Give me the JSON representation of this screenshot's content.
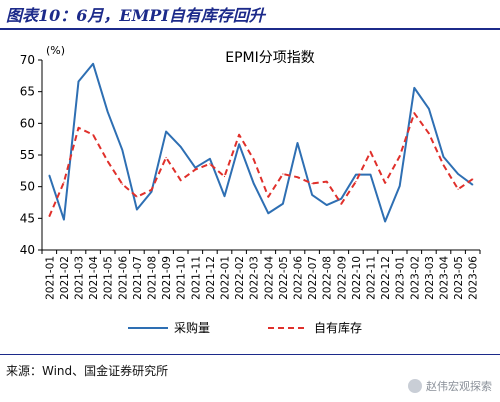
{
  "figure": {
    "title": "图表10：6月，EMPI自有库存回升",
    "source": "来源：Wind、国金证券研究所",
    "watermark": "赵伟宏观探索"
  },
  "chart_data": {
    "type": "line",
    "title": "EPMI分项指数",
    "unit_label": "(%)",
    "ylim": [
      40,
      70
    ],
    "yticks": [
      40,
      45,
      50,
      55,
      60,
      65,
      70
    ],
    "categories": [
      "2021-01",
      "2021-02",
      "2021-03",
      "2021-04",
      "2021-05",
      "2021-06",
      "2021-07",
      "2021-08",
      "2021-09",
      "2021-10",
      "2021-11",
      "2021-12",
      "2022-01",
      "2022-02",
      "2022-03",
      "2022-04",
      "2022-05",
      "2022-06",
      "2022-07",
      "2022-08",
      "2022-09",
      "2022-10",
      "2022-11",
      "2022-12",
      "2023-01",
      "2023-02",
      "2023-03",
      "2023-04",
      "2023-05",
      "2023-06"
    ],
    "series": [
      {
        "name": "采购量",
        "color": "#2e6fb3",
        "dash": false,
        "values": [
          51.8,
          44.8,
          66.6,
          69.4,
          61.8,
          55.8,
          46.4,
          49.2,
          58.7,
          56.3,
          53.0,
          54.4,
          48.5,
          56.7,
          50.5,
          45.8,
          47.3,
          56.9,
          48.7,
          47.1,
          48.1,
          51.9,
          51.9,
          44.5,
          50.1,
          65.6,
          62.3,
          54.7,
          52.0,
          50.3
        ]
      },
      {
        "name": "自有库存",
        "color": "#e0302b",
        "dash": true,
        "values": [
          45.3,
          50.7,
          59.3,
          58.2,
          54.0,
          50.4,
          48.4,
          49.5,
          54.6,
          51.0,
          52.7,
          53.6,
          51.6,
          58.2,
          54.3,
          48.4,
          52.0,
          51.5,
          50.5,
          50.8,
          47.3,
          50.8,
          55.5,
          50.6,
          54.8,
          61.6,
          58.4,
          53.4,
          49.6,
          51.2
        ]
      }
    ],
    "grid": false,
    "legend_position": "bottom"
  }
}
